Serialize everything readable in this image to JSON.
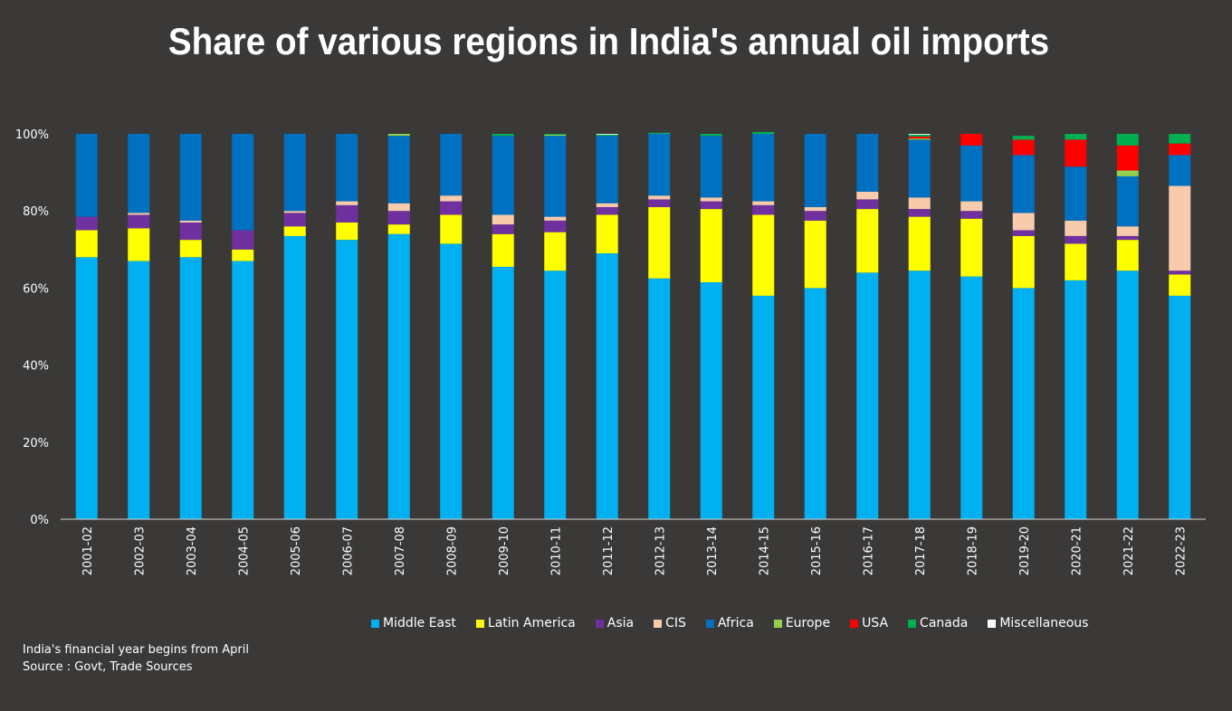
{
  "chart_data": {
    "type": "bar",
    "stacked": true,
    "title": "Share of various regions in India's annual oil imports",
    "xlabel": "",
    "ylabel": "",
    "ylim": [
      0,
      100
    ],
    "y_ticks": [
      "0%",
      "20%",
      "40%",
      "60%",
      "80%",
      "100%"
    ],
    "categories": [
      "2001-02",
      "2002-03",
      "2003-04",
      "2004-05",
      "2005-06",
      "2006-07",
      "2007-08",
      "2008-09",
      "2009-10",
      "2010-11",
      "2011-12",
      "2012-13",
      "2013-14",
      "2014-15",
      "2015-16",
      "2016-17",
      "2017-18",
      "2018-19",
      "2019-20",
      "2020-21",
      "2021-22",
      "2022-23"
    ],
    "legend_position": "bottom",
    "series": [
      {
        "name": "Middle East",
        "color": "#00b0f0",
        "values": [
          68,
          67,
          68,
          67,
          73.5,
          72.5,
          74,
          71.5,
          65.5,
          64.5,
          69,
          62.5,
          61.5,
          58,
          60,
          64,
          64.5,
          63,
          60,
          62,
          64.5,
          58
        ]
      },
      {
        "name": "Latin America",
        "color": "#ffff00",
        "values": [
          7,
          8.5,
          4.5,
          3,
          2.5,
          4.5,
          2.5,
          7.5,
          8.5,
          10,
          10,
          18.5,
          19,
          21,
          17.5,
          16.5,
          14,
          15,
          13.5,
          9.5,
          8,
          5.5
        ]
      },
      {
        "name": "Asia",
        "color": "#7030a0",
        "values": [
          3.5,
          3.5,
          4.5,
          5,
          3.5,
          4.5,
          3.5,
          3.5,
          2.5,
          3,
          2,
          2,
          2,
          2.5,
          2.5,
          2.5,
          2,
          2,
          1.5,
          2,
          1,
          1
        ]
      },
      {
        "name": "CIS",
        "color": "#f8cbad",
        "values": [
          0,
          0.5,
          0.5,
          0,
          0.5,
          1,
          2,
          1.5,
          2.5,
          1,
          1,
          1,
          1,
          1,
          1,
          2,
          3,
          2.5,
          4.5,
          4,
          2.5,
          22
        ]
      },
      {
        "name": "Africa",
        "color": "#0070c0",
        "values": [
          21.5,
          20.5,
          22.5,
          25,
          20,
          17.5,
          17.5,
          16,
          20.5,
          21,
          17.5,
          16,
          16,
          17.5,
          19,
          15,
          15,
          14.5,
          15,
          14,
          13,
          8
        ]
      },
      {
        "name": "Europe",
        "color": "#92d050",
        "values": [
          0,
          0,
          0,
          0,
          0,
          0,
          0.5,
          0,
          0,
          0.3,
          0,
          0,
          0,
          0,
          0,
          0,
          0.3,
          0,
          0,
          0,
          1.5,
          0
        ]
      },
      {
        "name": "USA",
        "color": "#ff0000",
        "values": [
          0,
          0,
          0,
          0,
          0,
          0,
          0,
          0,
          0,
          0,
          0,
          0,
          0,
          0,
          0,
          0,
          0.5,
          3,
          4,
          7,
          6.5,
          3
        ]
      },
      {
        "name": "Canada",
        "color": "#00b050",
        "values": [
          0,
          0,
          0,
          0,
          0,
          0,
          0,
          0,
          0.5,
          0.2,
          0.3,
          0.3,
          0.5,
          0.5,
          0,
          0,
          0.5,
          0,
          1,
          1.5,
          3,
          2.5
        ]
      },
      {
        "name": "Miscellaneous",
        "color": "#ffffff",
        "values": [
          0,
          0,
          0,
          0,
          0,
          0,
          0,
          0,
          0,
          0,
          0.2,
          0,
          0,
          0,
          0,
          0,
          0.2,
          0,
          0,
          0,
          0,
          0
        ]
      }
    ]
  },
  "notes": {
    "line1": "India's financial year begins from April",
    "line2": "Source : Govt, Trade Sources"
  }
}
